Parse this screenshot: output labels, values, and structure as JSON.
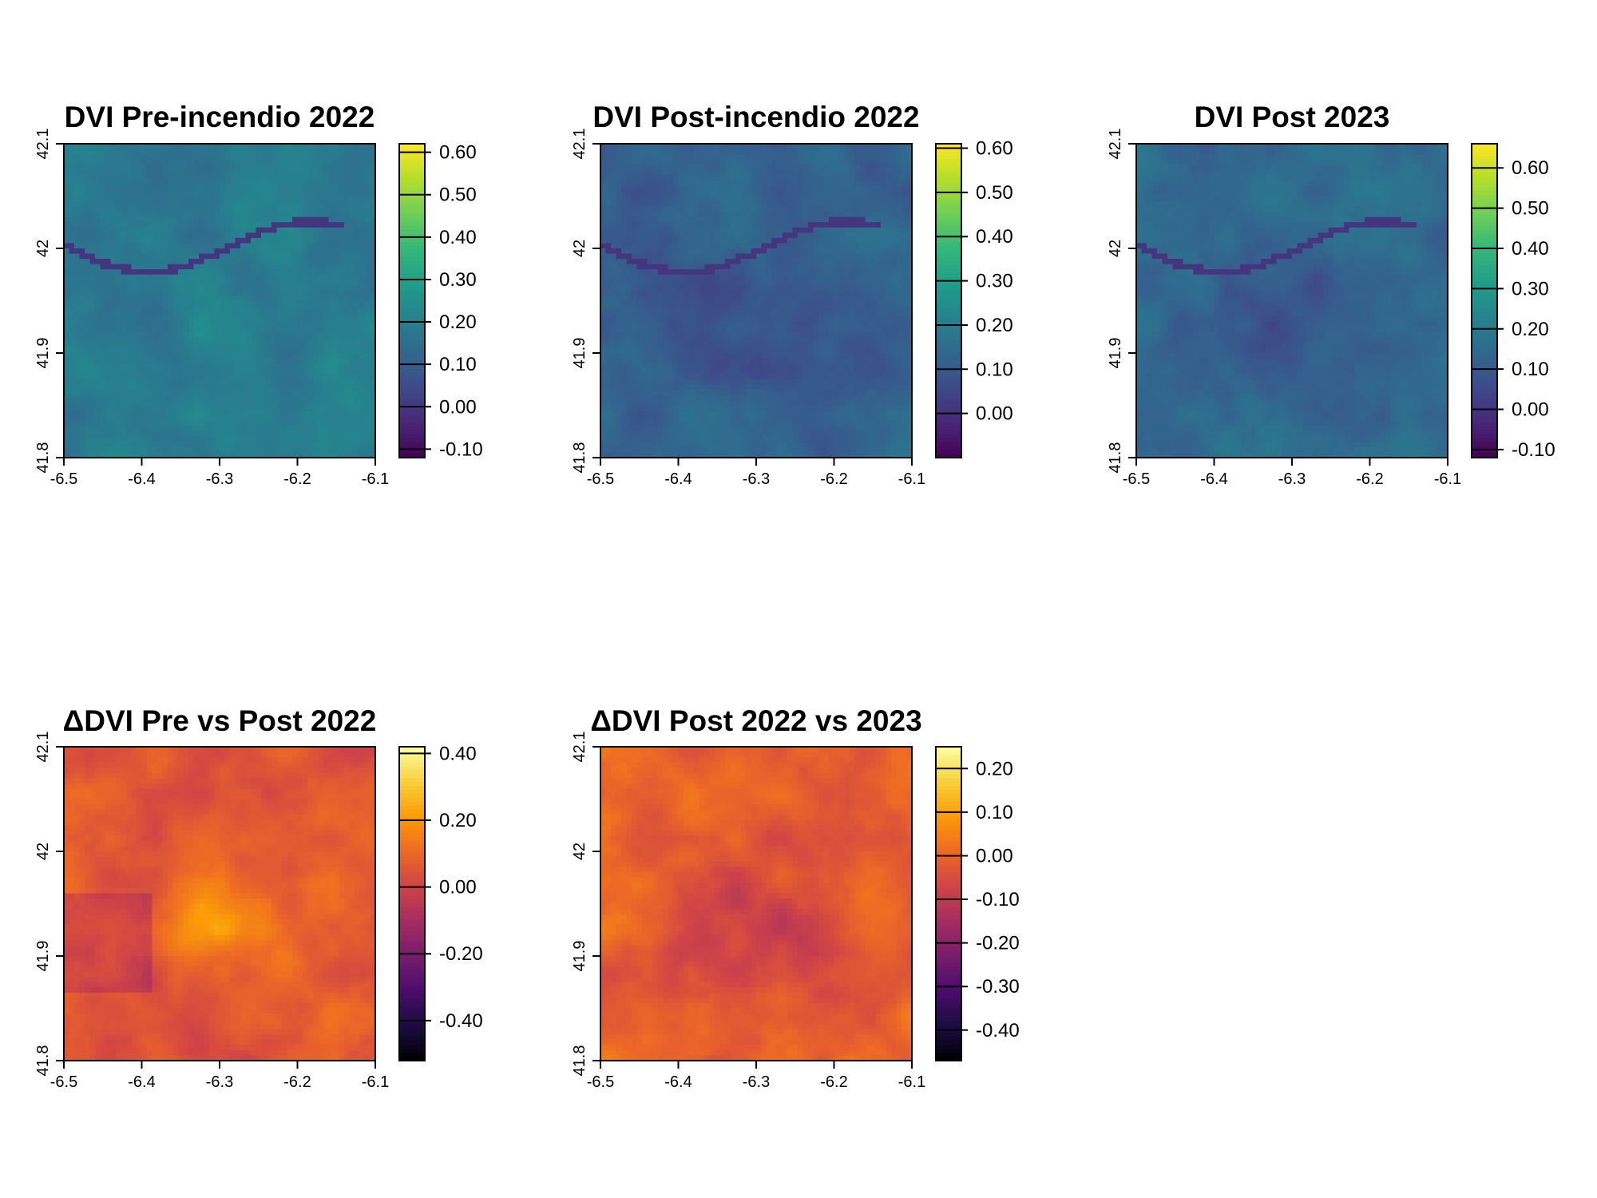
{
  "chart_data": [
    {
      "type": "heatmap",
      "title": "DVI Pre-incendio 2022",
      "palette": "viridis",
      "xlim": [
        -6.5,
        -6.1
      ],
      "ylim": [
        41.8,
        42.1
      ],
      "x_ticks": [
        "-6.5",
        "-6.4",
        "-6.3",
        "-6.2",
        "-6.1"
      ],
      "y_ticks": [
        "41.8",
        "41.9",
        "42",
        "42.1"
      ],
      "legend_range": [
        -0.12,
        0.62
      ],
      "legend_ticks": [
        "0.60",
        "0.50",
        "0.40",
        "0.30",
        "0.20",
        "0.10",
        "0.00",
        "-0.10"
      ],
      "legend_values": [
        0.6,
        0.5,
        0.4,
        0.3,
        0.2,
        0.1,
        0.0,
        -0.1
      ],
      "mean_value": 0.19
    },
    {
      "type": "heatmap",
      "title": "DVI Post-incendio 2022",
      "palette": "viridis",
      "xlim": [
        -6.5,
        -6.1
      ],
      "ylim": [
        41.8,
        42.1
      ],
      "x_ticks": [
        "-6.5",
        "-6.4",
        "-6.3",
        "-6.2",
        "-6.1"
      ],
      "y_ticks": [
        "41.8",
        "41.9",
        "42",
        "42.1"
      ],
      "legend_range": [
        -0.1,
        0.61
      ],
      "legend_ticks": [
        "0.60",
        "0.50",
        "0.40",
        "0.30",
        "0.20",
        "0.10",
        "0.00"
      ],
      "legend_values": [
        0.6,
        0.5,
        0.4,
        0.3,
        0.2,
        0.1,
        0.0
      ],
      "mean_value": 0.13
    },
    {
      "type": "heatmap",
      "title": "DVI Post 2023",
      "palette": "viridis",
      "xlim": [
        -6.5,
        -6.1
      ],
      "ylim": [
        41.8,
        42.1
      ],
      "x_ticks": [
        "-6.5",
        "-6.4",
        "-6.3",
        "-6.2",
        "-6.1"
      ],
      "y_ticks": [
        "41.8",
        "41.9",
        "42",
        "42.1"
      ],
      "legend_range": [
        -0.12,
        0.66
      ],
      "legend_ticks": [
        "0.60",
        "0.50",
        "0.40",
        "0.30",
        "0.20",
        "0.10",
        "0.00",
        "-0.10"
      ],
      "legend_values": [
        0.6,
        0.5,
        0.4,
        0.3,
        0.2,
        0.1,
        0.0,
        -0.1
      ],
      "mean_value": 0.15
    },
    {
      "type": "heatmap",
      "title": "ΔDVI Pre vs Post 2022",
      "palette": "inferno",
      "xlim": [
        -6.5,
        -6.1
      ],
      "ylim": [
        41.8,
        42.1
      ],
      "x_ticks": [
        "-6.5",
        "-6.4",
        "-6.3",
        "-6.2",
        "-6.1"
      ],
      "y_ticks": [
        "41.8",
        "41.9",
        "42",
        "42.1"
      ],
      "legend_range": [
        -0.52,
        0.42
      ],
      "legend_ticks": [
        "0.40",
        "0.20",
        "0.00",
        "-0.20",
        "-0.40"
      ],
      "legend_values": [
        0.4,
        0.2,
        0.0,
        -0.2,
        -0.4
      ],
      "mean_value": 0.06
    },
    {
      "type": "heatmap",
      "title": "ΔDVI Post 2022 vs 2023",
      "palette": "inferno",
      "xlim": [
        -6.5,
        -6.1
      ],
      "ylim": [
        41.8,
        42.1
      ],
      "x_ticks": [
        "-6.5",
        "-6.4",
        "-6.3",
        "-6.2",
        "-6.1"
      ],
      "y_ticks": [
        "41.8",
        "41.9",
        "42",
        "42.1"
      ],
      "legend_range": [
        -0.47,
        0.25
      ],
      "legend_ticks": [
        "0.20",
        "0.10",
        "0.00",
        "-0.10",
        "-0.20",
        "-0.30",
        "-0.40"
      ],
      "legend_values": [
        0.2,
        0.1,
        0.0,
        -0.1,
        -0.2,
        -0.3,
        -0.4
      ],
      "mean_value": 0.0
    }
  ]
}
